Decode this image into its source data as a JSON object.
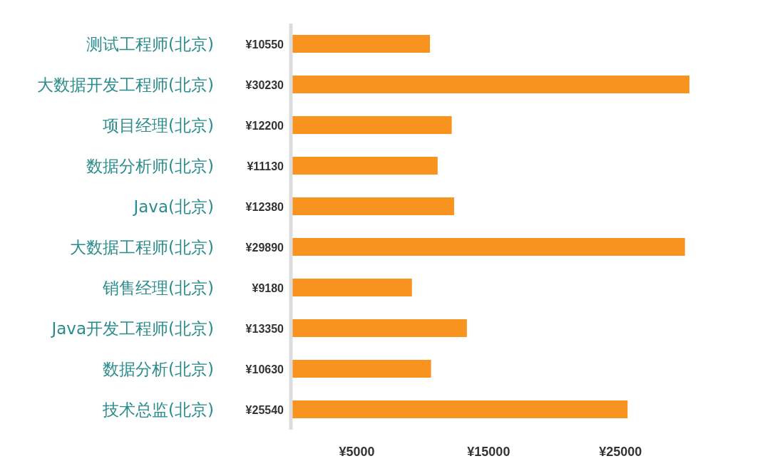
{
  "chart_data": {
    "type": "bar",
    "orientation": "horizontal",
    "categories": [
      "测试工程师(北京)",
      "大数据开发工程师(北京)",
      "项目经理(北京)",
      "数据分析师(北京)",
      "Java(北京)",
      "大数据工程师(北京)",
      "销售经理(北京)",
      "Java开发工程师(北京)",
      "数据分析(北京)",
      "技术总监(北京)"
    ],
    "values": [
      10550,
      30230,
      12200,
      11130,
      12380,
      29890,
      9180,
      13350,
      10630,
      25540
    ],
    "value_labels": [
      "¥10550",
      "¥30230",
      "¥12200",
      "¥11130",
      "¥12380",
      "¥29890",
      "¥9180",
      "¥13350",
      "¥10630",
      "¥25540"
    ],
    "color": "#f7931e",
    "xlim": [
      0,
      30230
    ],
    "xticks": [
      {
        "value": 5000,
        "label": "¥5000"
      },
      {
        "value": 15000,
        "label": "¥15000"
      },
      {
        "value": 25000,
        "label": "¥25000"
      }
    ],
    "grid": false,
    "legend": false
  }
}
